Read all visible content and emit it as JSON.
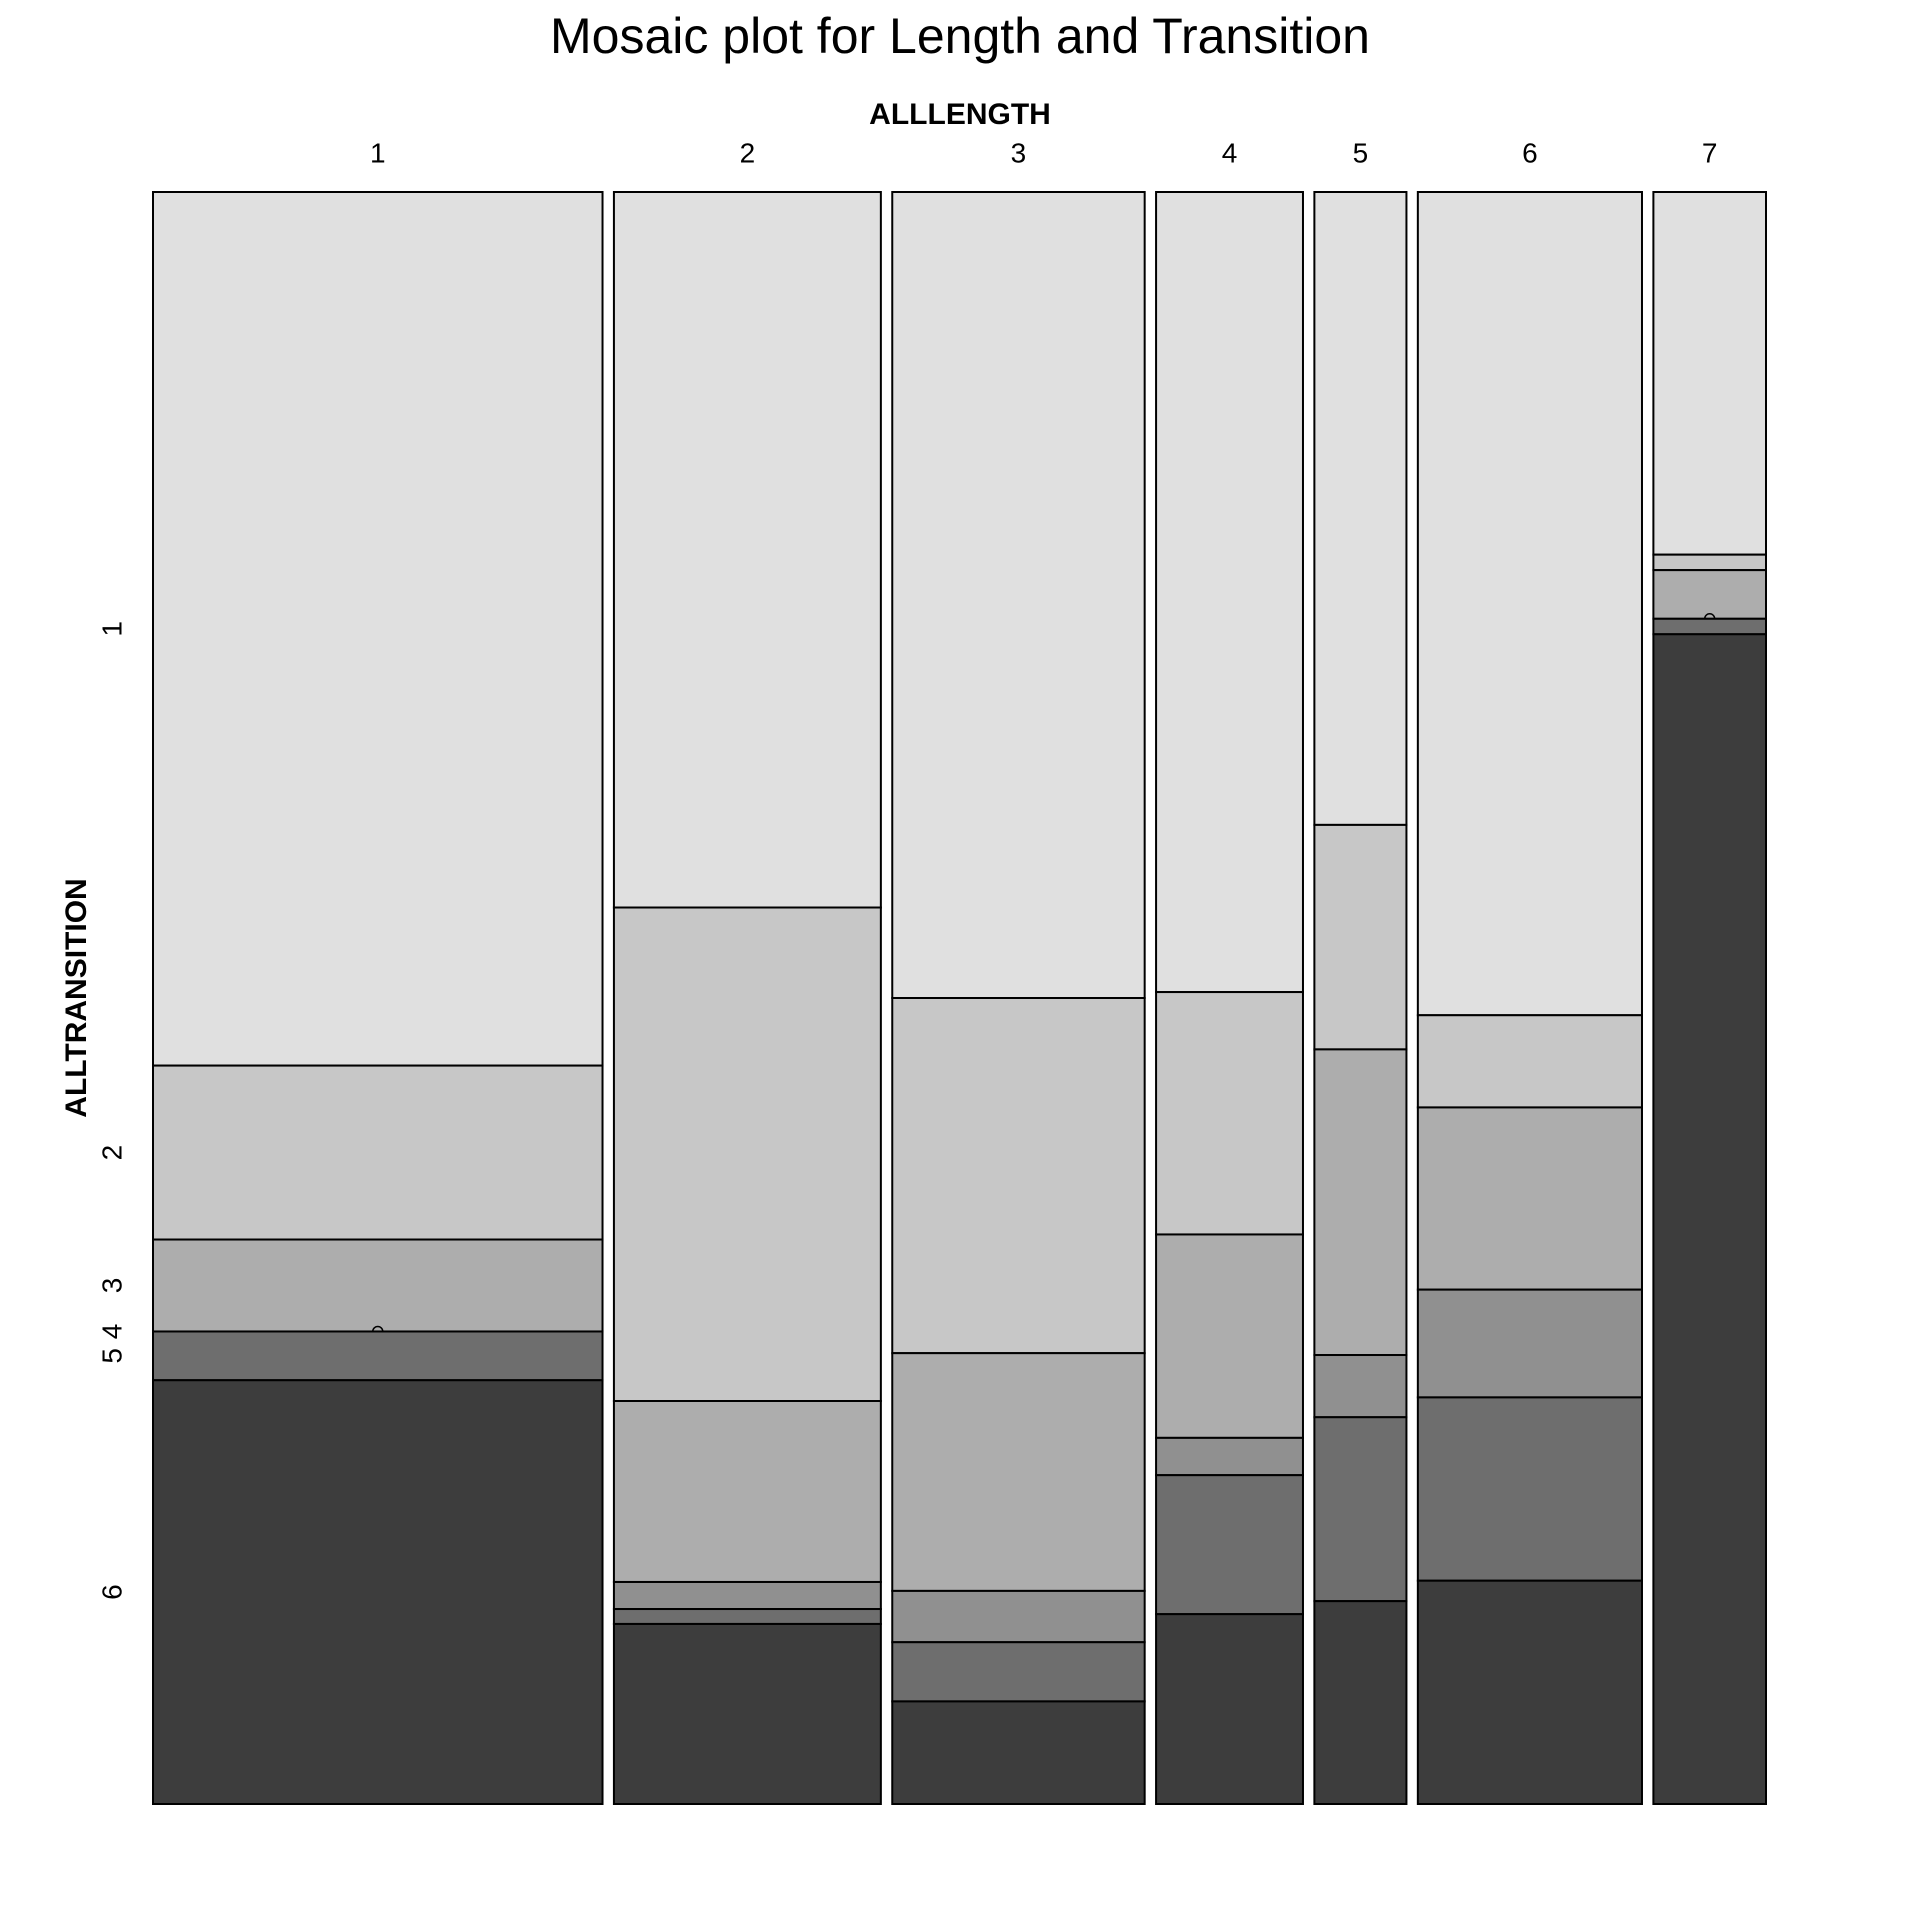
{
  "chart_data": {
    "type": "mosaic",
    "title": "Mosaic plot for Length and Transition",
    "x_label": "ALLLENGTH",
    "y_label": "ALLTRANSITION",
    "categories": [
      "1",
      "2",
      "3",
      "4",
      "5",
      "6",
      "7"
    ],
    "series": [
      {
        "name": "1",
        "color": "#e0e0e0",
        "values": [
          15.77,
          7.67,
          8.17,
          4.72,
          2.34,
          7.41,
          1.64
        ]
      },
      {
        "name": "2",
        "color": "#c7c7c7",
        "values": [
          3.14,
          5.29,
          3.6,
          1.43,
          0.83,
          0.83,
          0.07
        ]
      },
      {
        "name": "3",
        "color": "#adadad",
        "values": [
          1.66,
          1.94,
          2.41,
          1.2,
          1.13,
          1.64,
          0.22
        ]
      },
      {
        "name": "4",
        "color": "#909090",
        "values": [
          0,
          0.29,
          0.52,
          0.22,
          0.23,
          0.97,
          0
        ]
      },
      {
        "name": "5",
        "color": "#6e6e6e",
        "values": [
          0.88,
          0.16,
          0.6,
          0.82,
          0.68,
          1.65,
          0.07
        ]
      },
      {
        "name": "6",
        "color": "#3d3d3d",
        "values": [
          7.65,
          1.93,
          1.04,
          1.12,
          0.75,
          2.01,
          5.29
        ]
      }
    ]
  }
}
